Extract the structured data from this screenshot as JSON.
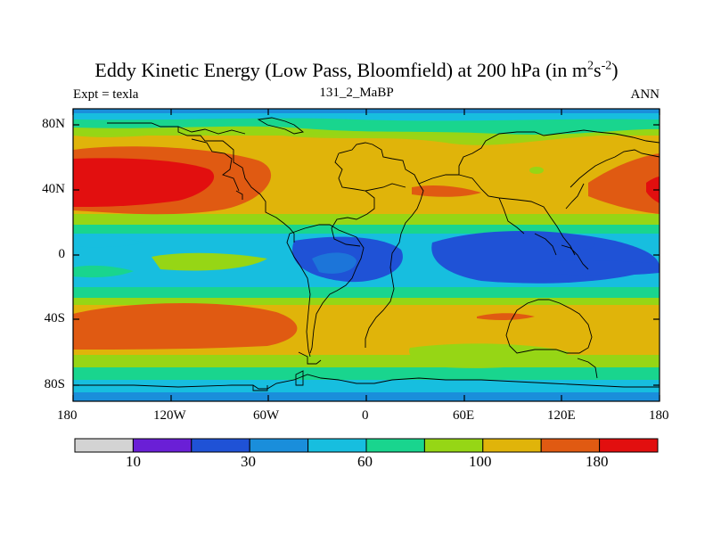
{
  "title": {
    "main": "Eddy Kinetic Energy (Low Pass, Bloomfield) at 200 hPa (in m",
    "sup1": "2",
    "mid": "s",
    "sup2": "-2",
    "end": ")"
  },
  "subtitle": {
    "left": "Expt = texla",
    "center": "131_2_MaBP",
    "right": "ANN"
  },
  "axes": {
    "lat_labels": [
      "80N",
      "40N",
      "0",
      "40S",
      "80S"
    ],
    "lon_labels": [
      "180",
      "120W",
      "60W",
      "0",
      "60E",
      "120E",
      "180"
    ]
  },
  "colorbar": {
    "colors": [
      "#d3d3d3",
      "#6a1fd6",
      "#1f52d6",
      "#1a8edb",
      "#17bedf",
      "#19d58e",
      "#96d615",
      "#e0b40a",
      "#e05a12",
      "#e20f0f"
    ],
    "labels": [
      "10",
      "30",
      "60",
      "100",
      "180"
    ]
  }
}
